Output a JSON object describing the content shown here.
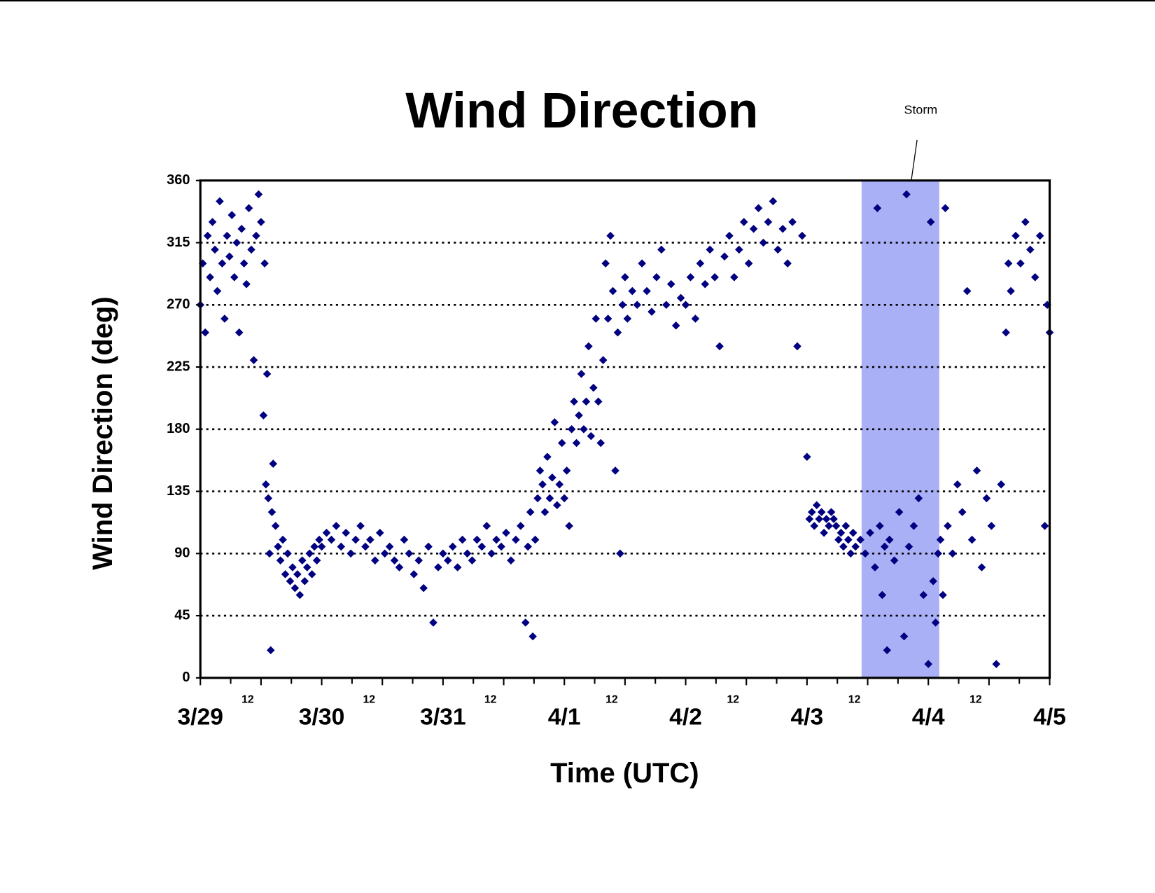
{
  "chart_data": {
    "type": "scatter",
    "title": "Wind Direction",
    "xlabel": "Time (UTC)",
    "ylabel": "Wind Direction (deg)",
    "color": "#000080",
    "xlim": [
      0,
      7
    ],
    "ylim": [
      0,
      360
    ],
    "yticks": [
      0,
      45,
      90,
      135,
      180,
      225,
      270,
      315,
      360
    ],
    "xticks": [
      {
        "value": 0,
        "label": "3/29"
      },
      {
        "value": 0.5,
        "label": "12"
      },
      {
        "value": 1,
        "label": "3/30"
      },
      {
        "value": 1.5,
        "label": "12"
      },
      {
        "value": 2,
        "label": "3/31"
      },
      {
        "value": 2.5,
        "label": "12"
      },
      {
        "value": 3,
        "label": "4/1"
      },
      {
        "value": 3.5,
        "label": "12"
      },
      {
        "value": 4,
        "label": "4/2"
      },
      {
        "value": 4.5,
        "label": "12"
      },
      {
        "value": 5,
        "label": "4/3"
      },
      {
        "value": 5.5,
        "label": "12"
      },
      {
        "value": 6,
        "label": "4/4"
      },
      {
        "value": 6.5,
        "label": "12"
      },
      {
        "value": 7,
        "label": "4/5"
      }
    ],
    "xminorticks": [
      0.25,
      0.75,
      1.25,
      1.75,
      2.25,
      2.75,
      3.25,
      3.75,
      4.25,
      4.75,
      5.25,
      5.75,
      6.25,
      6.75
    ],
    "grid": true,
    "shaded_region": {
      "label": "Storm",
      "xlim": [
        5.45,
        6.09
      ],
      "color": "#aab0f5"
    },
    "x": [
      0,
      0.02,
      0.04,
      0.06,
      0.08,
      0.1,
      0.12,
      0.14,
      0.16,
      0.18,
      0.2,
      0.22,
      0.24,
      0.26,
      0.28,
      0.3,
      0.32,
      0.34,
      0.36,
      0.38,
      0.4,
      0.42,
      0.44,
      0.46,
      0.48,
      0.5,
      0.52,
      0.53,
      0.54,
      0.55,
      0.56,
      0.57,
      0.58,
      0.59,
      0.6,
      0.62,
      0.64,
      0.66,
      0.68,
      0.7,
      0.72,
      0.74,
      0.76,
      0.78,
      0.8,
      0.82,
      0.84,
      0.86,
      0.88,
      0.9,
      0.92,
      0.94,
      0.96,
      0.98,
      1,
      1.04,
      1.08,
      1.12,
      1.16,
      1.2,
      1.24,
      1.28,
      1.32,
      1.36,
      1.4,
      1.44,
      1.48,
      1.52,
      1.56,
      1.6,
      1.64,
      1.68,
      1.72,
      1.76,
      1.8,
      1.84,
      1.88,
      1.92,
      1.96,
      2,
      2.04,
      2.08,
      2.12,
      2.16,
      2.2,
      2.24,
      2.28,
      2.32,
      2.36,
      2.4,
      2.44,
      2.48,
      2.52,
      2.56,
      2.6,
      2.64,
      2.68,
      2.7,
      2.72,
      2.74,
      2.76,
      2.78,
      2.8,
      2.82,
      2.84,
      2.86,
      2.88,
      2.9,
      2.92,
      2.94,
      2.96,
      2.98,
      3,
      3.02,
      3.04,
      3.06,
      3.08,
      3.1,
      3.12,
      3.14,
      3.16,
      3.18,
      3.2,
      3.22,
      3.24,
      3.26,
      3.28,
      3.3,
      3.32,
      3.34,
      3.36,
      3.38,
      3.4,
      3.42,
      3.44,
      3.46,
      3.48,
      3.5,
      3.52,
      3.56,
      3.6,
      3.64,
      3.68,
      3.72,
      3.76,
      3.8,
      3.84,
      3.88,
      3.92,
      3.96,
      4,
      4.04,
      4.08,
      4.12,
      4.16,
      4.2,
      4.24,
      4.28,
      4.32,
      4.36,
      4.4,
      4.44,
      4.48,
      4.52,
      4.56,
      4.6,
      4.64,
      4.68,
      4.72,
      4.76,
      4.8,
      4.84,
      4.88,
      4.92,
      4.96,
      5,
      5.02,
      5.04,
      5.06,
      5.08,
      5.1,
      5.12,
      5.14,
      5.16,
      5.18,
      5.2,
      5.22,
      5.24,
      5.26,
      5.28,
      5.3,
      5.32,
      5.34,
      5.36,
      5.38,
      5.4,
      5.44,
      5.48,
      5.52,
      5.56,
      5.58,
      5.6,
      5.62,
      5.64,
      5.66,
      5.68,
      5.72,
      5.76,
      5.8,
      5.82,
      5.84,
      5.88,
      5.92,
      5.96,
      6,
      6.02,
      6.04,
      6.06,
      6.08,
      6.1,
      6.12,
      6.14,
      6.16,
      6.2,
      6.24,
      6.28,
      6.32,
      6.36,
      6.4,
      6.44,
      6.48,
      6.52,
      6.56,
      6.6,
      6.64,
      6.66,
      6.68,
      6.72,
      6.76,
      6.8,
      6.84,
      6.88,
      6.92,
      6.96,
      6.98,
      7
    ],
    "values": [
      270,
      300,
      250,
      320,
      290,
      330,
      310,
      280,
      345,
      300,
      260,
      320,
      305,
      335,
      290,
      315,
      250,
      325,
      300,
      285,
      340,
      310,
      230,
      320,
      350,
      330,
      190,
      300,
      140,
      220,
      130,
      90,
      20,
      120,
      155,
      110,
      95,
      85,
      100,
      75,
      90,
      70,
      80,
      65,
      75,
      60,
      85,
      70,
      80,
      90,
      75,
      95,
      85,
      100,
      95,
      105,
      100,
      110,
      95,
      105,
      90,
      100,
      110,
      95,
      100,
      85,
      105,
      90,
      95,
      85,
      80,
      100,
      90,
      75,
      85,
      65,
      95,
      40,
      80,
      90,
      85,
      95,
      80,
      100,
      90,
      85,
      100,
      95,
      110,
      90,
      100,
      95,
      105,
      85,
      100,
      110,
      40,
      95,
      120,
      30,
      100,
      130,
      150,
      140,
      120,
      160,
      130,
      145,
      185,
      125,
      140,
      170,
      130,
      150,
      110,
      180,
      200,
      170,
      190,
      220,
      180,
      200,
      240,
      175,
      210,
      260,
      200,
      170,
      230,
      300,
      260,
      320,
      280,
      150,
      250,
      90,
      270,
      290,
      260,
      280,
      270,
      300,
      280,
      265,
      290,
      310,
      270,
      285,
      255,
      275,
      270,
      290,
      260,
      300,
      285,
      310,
      290,
      240,
      305,
      320,
      290,
      310,
      330,
      300,
      325,
      340,
      315,
      330,
      345,
      310,
      325,
      300,
      330,
      240,
      320,
      160,
      115,
      120,
      110,
      125,
      115,
      120,
      105,
      115,
      110,
      120,
      115,
      110,
      100,
      105,
      95,
      110,
      100,
      90,
      105,
      95,
      100,
      90,
      105,
      80,
      340,
      110,
      60,
      95,
      20,
      100,
      85,
      120,
      30,
      350,
      95,
      110,
      130,
      60,
      10,
      330,
      70,
      40,
      90,
      100,
      60,
      340,
      110,
      90,
      140,
      120,
      280,
      100,
      150,
      80,
      130,
      110,
      10,
      140,
      250,
      300,
      280,
      320,
      300,
      330,
      310,
      290,
      320,
      110,
      270,
      250
    ]
  }
}
